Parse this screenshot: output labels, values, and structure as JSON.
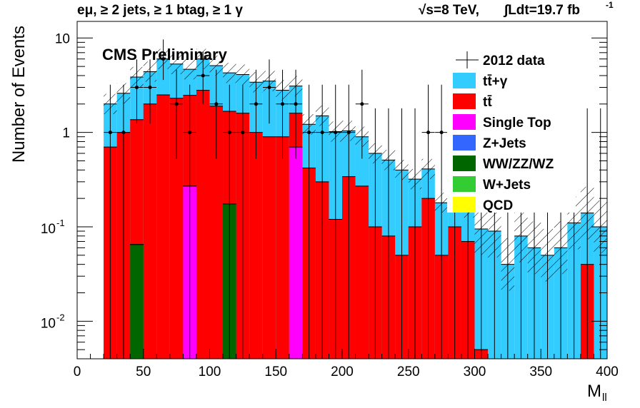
{
  "header": {
    "selection": "eμ, ≥ 2 jets, ≥ 1 btag, ≥ 1 γ",
    "energy": "√s=8 TeV,",
    "lumi": "∫Ldt=19.7 fb",
    "lumi_exp": "-1"
  },
  "chart_data": {
    "type": "bar",
    "stacked": true,
    "log_y": true,
    "annotation": "CMS Preliminary",
    "xlabel": "M",
    "xlabel_sub": "ll",
    "ylabel": "Number of Events",
    "xlim": [
      0,
      400
    ],
    "ylim": [
      0.004,
      15
    ],
    "bin_width": 10,
    "x_ticks": [
      0,
      50,
      100,
      150,
      200,
      250,
      300,
      350,
      400
    ],
    "x_tick_labels": [
      "0",
      "50",
      "100",
      "150",
      "200",
      "250",
      "300",
      "350",
      "400"
    ],
    "y_ticks": [
      {
        "value": 10,
        "base": "10",
        "exp": ""
      },
      {
        "value": 1,
        "base": "1",
        "exp": ""
      },
      {
        "value": 0.1,
        "base": "10",
        "exp": "-1"
      },
      {
        "value": 0.01,
        "base": "10",
        "exp": "-2"
      }
    ],
    "bin_low_edges": [
      20,
      30,
      40,
      50,
      60,
      70,
      80,
      90,
      100,
      110,
      120,
      130,
      140,
      150,
      160,
      170,
      180,
      190,
      200,
      210,
      220,
      230,
      240,
      250,
      260,
      270,
      280,
      290,
      300,
      310,
      320,
      330,
      340,
      350,
      360,
      370,
      380,
      390
    ],
    "series": [
      {
        "name": "tt̄+γ",
        "color": "#33ccff",
        "values": [
          1.3,
          1.6,
          2.5,
          2.4,
          3.5,
          3.0,
          2.2,
          3.2,
          3.2,
          2.6,
          2.5,
          2.4,
          2.6,
          1.9,
          1.5,
          0.8,
          1.2,
          0.9,
          0.7,
          0.63,
          0.5,
          0.43,
          0.35,
          0.22,
          0.21,
          0.13,
          0.1,
          0.09,
          0.09,
          0.09,
          0.04,
          0.08,
          0.06,
          0.05,
          0.06,
          0.11,
          0.1,
          0.1
        ]
      },
      {
        "name": "tt̄",
        "color": "#ff0000",
        "values": [
          0.7,
          1.0,
          1.3,
          2.0,
          2.5,
          2.3,
          2.2,
          2.8,
          1.9,
          1.5,
          1.6,
          1.0,
          0.9,
          0.9,
          0.9,
          0.42,
          0.3,
          0.12,
          0.34,
          0.27,
          0.1,
          0.08,
          0.05,
          0.1,
          0.2,
          0.05,
          0.1,
          0.07,
          0.005,
          0,
          0,
          0,
          0,
          0,
          0,
          0,
          0.04,
          0
        ]
      },
      {
        "name": "Single Top",
        "color": "#ff00ff",
        "values": [
          0,
          0,
          0,
          0,
          0,
          0,
          0.27,
          0,
          0,
          0,
          0,
          0,
          0,
          0,
          0.7,
          0,
          0,
          0,
          0,
          0,
          0,
          0,
          0,
          0,
          0,
          0,
          0,
          0,
          0,
          0,
          0,
          0,
          0,
          0,
          0,
          0,
          0,
          0
        ]
      },
      {
        "name": "Z+Jets",
        "color": "#3366ff",
        "values": [
          0,
          0,
          0,
          0,
          0,
          0,
          0,
          0,
          0,
          0,
          0,
          0,
          0,
          0,
          0,
          0,
          0,
          0,
          0,
          0,
          0,
          0,
          0,
          0,
          0,
          0,
          0,
          0,
          0,
          0,
          0,
          0,
          0,
          0,
          0,
          0,
          0,
          0
        ]
      },
      {
        "name": "WW/ZZ/WZ",
        "color": "#006600",
        "values": [
          0,
          0,
          0.065,
          0,
          0,
          0,
          0,
          0,
          0,
          0.175,
          0,
          0,
          0,
          0,
          0,
          0,
          0,
          0,
          0,
          0,
          0,
          0,
          0,
          0,
          0,
          0,
          0,
          0,
          0,
          0,
          0,
          0,
          0,
          0,
          0,
          0,
          0,
          0
        ]
      },
      {
        "name": "W+Jets",
        "color": "#33cc33",
        "values": [
          0,
          0,
          0,
          0,
          0,
          0,
          0,
          0,
          0,
          0,
          0,
          0,
          0,
          0,
          0,
          0,
          0,
          0,
          0,
          0,
          0,
          0,
          0,
          0,
          0,
          0,
          0,
          0,
          0,
          0,
          0,
          0,
          0,
          0,
          0,
          0,
          0,
          0
        ]
      },
      {
        "name": "QCD",
        "color": "#ffff00",
        "values": [
          0,
          0,
          0,
          0,
          0,
          0,
          0,
          0,
          0,
          0,
          0,
          0,
          0,
          0,
          0,
          0,
          0,
          0,
          0,
          0,
          0,
          0,
          0,
          0,
          0,
          0,
          0,
          0,
          0,
          0,
          0,
          0,
          0,
          0,
          0,
          0,
          0,
          0
        ]
      }
    ],
    "data": {
      "name": "2012 data",
      "points": [
        {
          "x": 25,
          "y": 1
        },
        {
          "x": 35,
          "y": 1
        },
        {
          "x": 45,
          "y": 3
        },
        {
          "x": 55,
          "y": 3
        },
        {
          "x": 65,
          "y": 6
        },
        {
          "x": 75,
          "y": 2
        },
        {
          "x": 85,
          "y": 1
        },
        {
          "x": 95,
          "y": 4
        },
        {
          "x": 105,
          "y": 2
        },
        {
          "x": 115,
          "y": 1
        },
        {
          "x": 125,
          "y": 1
        },
        {
          "x": 135,
          "y": 2
        },
        {
          "x": 145,
          "y": 3
        },
        {
          "x": 155,
          "y": 2
        },
        {
          "x": 165,
          "y": 2
        },
        {
          "x": 175,
          "y": 1
        },
        {
          "x": 185,
          "y": 1
        },
        {
          "x": 195,
          "y": 1
        },
        {
          "x": 205,
          "y": 1
        },
        {
          "x": 215,
          "y": 2
        },
        {
          "x": 265,
          "y": 1
        },
        {
          "x": 275,
          "y": 1
        }
      ],
      "zero_bins_x": [
        225,
        235,
        245,
        255,
        285,
        295,
        305,
        315,
        325,
        335,
        345,
        355,
        365,
        375,
        385,
        395
      ]
    }
  }
}
